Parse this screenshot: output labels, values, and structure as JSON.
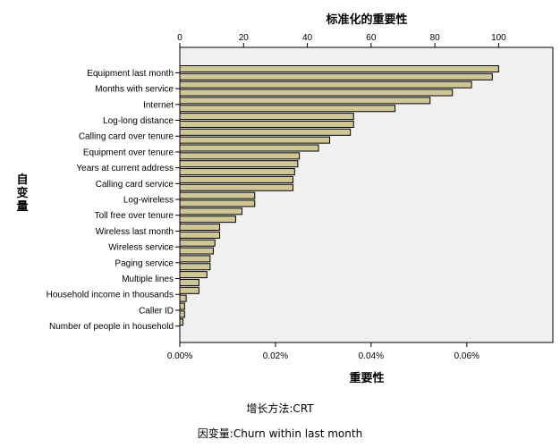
{
  "chart_data": {
    "type": "bar",
    "orientation": "horizontal",
    "title": "标准化的重要性",
    "xlabel": "重要性",
    "ylabel": "自变量",
    "top_axis": {
      "label": "标准化的重要性",
      "range": [
        0,
        117
      ],
      "ticks": [
        0,
        20,
        40,
        60,
        80,
        100
      ],
      "unit": "%"
    },
    "bottom_axis": {
      "label": "重要性",
      "range": [
        0,
        0.00078
      ],
      "ticks": [
        "0.00%",
        "0.02%",
        "0.04%",
        "0.06%"
      ],
      "tick_values": [
        0,
        0.0002,
        0.0004,
        0.0006
      ]
    },
    "grid": false,
    "bar_color": "#cfc796",
    "plot_background": "#f0f0f0",
    "labeled_categories": [
      "Equipment last month",
      "Months with service",
      "Internet",
      "Log-long distance",
      "Calling card over tenure",
      "Equipment over tenure",
      "Years at current address",
      "Calling card service",
      "Log-wireless",
      "Toll free over tenure",
      "Wireless last month",
      "Wireless service",
      "Paging service",
      "Multiple lines",
      "Household income in thousands",
      "Caller ID",
      "Number of people in household"
    ],
    "values": [
      100,
      98,
      91.5,
      85.5,
      78.5,
      67.5,
      54.5,
      54.5,
      53.5,
      47,
      43.5,
      37.5,
      37,
      36,
      35.5,
      35.5,
      23.5,
      23.5,
      19.5,
      17.5,
      12.5,
      12.5,
      11,
      10.5,
      9.5,
      9.5,
      8.5,
      6,
      6,
      2,
      1.5,
      1.5,
      1
    ]
  },
  "footer": {
    "growth_method": "增长方法:CRT",
    "dependent_variable": "因变量:Churn within last month"
  }
}
